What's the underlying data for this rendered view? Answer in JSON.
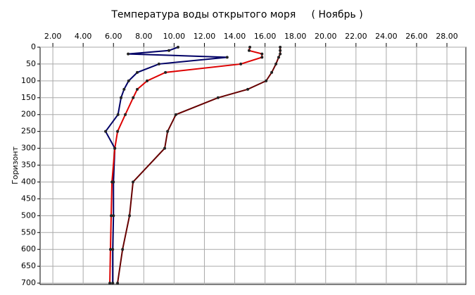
{
  "chart_data": {
    "type": "line",
    "title": "Температура воды открытого моря     ( Ноябрь )",
    "y_label": "Горизонт",
    "depths": [
      0,
      10,
      20,
      30,
      50,
      75,
      100,
      125,
      150,
      200,
      250,
      300,
      400,
      500,
      600,
      700
    ],
    "series": [
      {
        "color": "#000066",
        "values": [
          10.26,
          9.66,
          6.97,
          13.5,
          9.0,
          7.57,
          7.0,
          6.7,
          6.5,
          6.3,
          5.48,
          6.09,
          6.0,
          6.0,
          5.95,
          5.95
        ]
      },
      {
        "color": "#dd0000",
        "values": [
          15.0,
          14.95,
          15.8,
          15.8,
          14.4,
          9.43,
          8.22,
          7.57,
          7.3,
          6.78,
          6.27,
          6.09,
          5.9,
          5.85,
          5.8,
          5.76
        ]
      },
      {
        "color": "#660000",
        "values": [
          17.0,
          17.0,
          17.0,
          16.9,
          16.72,
          16.44,
          16.07,
          14.86,
          12.9,
          10.12,
          9.57,
          9.38,
          7.29,
          7.06,
          6.6,
          6.27
        ]
      }
    ],
    "xlim": [
      1.16,
      29.25
    ],
    "xticks": [
      {
        "value": 2,
        "label": "2.00"
      },
      {
        "value": 4,
        "label": "4.00"
      },
      {
        "value": 6,
        "label": "6.00"
      },
      {
        "value": 8,
        "label": "8.00"
      },
      {
        "value": 10,
        "label": "10.00"
      },
      {
        "value": 12,
        "label": "12.00"
      },
      {
        "value": 14,
        "label": "14.00"
      },
      {
        "value": 16,
        "label": "16.00"
      },
      {
        "value": 18,
        "label": "18.00"
      },
      {
        "value": 20,
        "label": "20.00"
      },
      {
        "value": 22,
        "label": "22.00"
      },
      {
        "value": 24,
        "label": "24.00"
      },
      {
        "value": 26,
        "label": "26.00"
      },
      {
        "value": 28,
        "label": "28.00"
      }
    ],
    "ylim": [
      0,
      704
    ],
    "yticks": [
      0,
      50,
      100,
      150,
      200,
      250,
      300,
      350,
      400,
      450,
      500,
      550,
      600,
      650,
      700
    ],
    "y_inverted": true,
    "grid": true
  }
}
